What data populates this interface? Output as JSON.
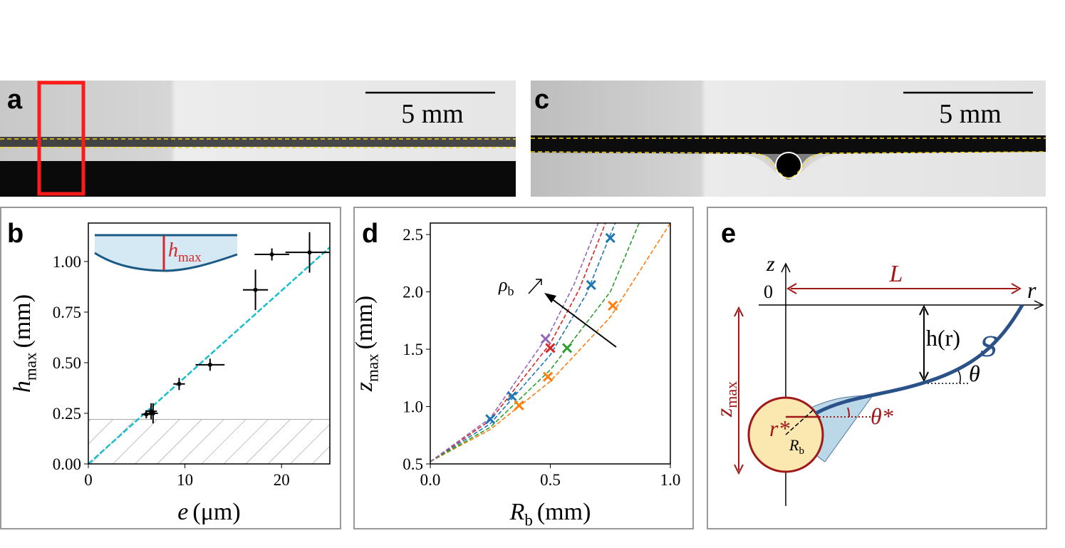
{
  "panels": {
    "a": {
      "label": "a",
      "scale_bar": "5 mm"
    },
    "c": {
      "label": "c",
      "scale_bar": "5 mm"
    },
    "b": {
      "label": "b"
    },
    "d": {
      "label": "d"
    },
    "e": {
      "label": "e",
      "labels": {
        "z": "z",
        "origin": "0",
        "r": "r",
        "L": "L",
        "h": "h(r)",
        "theta": "θ",
        "S": "S",
        "zmax_symbol": "z",
        "zmax_sub": "max",
        "rstar": "r*",
        "thetastar": "θ*",
        "Rb_symbol": "R",
        "Rb_sub": "b"
      }
    }
  },
  "chart_data": [
    {
      "type": "scatter",
      "xlabel": {
        "symbol": "e",
        "unit": "(μm)"
      },
      "ylabel": {
        "symbol": "h",
        "subscript": "max",
        "unit": "(mm)"
      },
      "inset_label": {
        "symbol": "h",
        "subscript": "max"
      },
      "xlim": [
        0,
        25
      ],
      "ylim": [
        0,
        1.19
      ],
      "xticks": [
        0,
        10,
        20
      ],
      "yticks": [
        {
          "value": 0,
          "label": "0.00"
        },
        {
          "value": 0.25,
          "label": "0.25"
        },
        {
          "value": 0.5,
          "label": "0.50"
        },
        {
          "value": 0.75,
          "label": "0.75"
        },
        {
          "value": 1,
          "label": "1.00"
        }
      ],
      "shaded_below": 0.22,
      "fit": {
        "x": [
          0,
          25
        ],
        "y": [
          0,
          1.07
        ],
        "color": "#17becf"
      },
      "points": {
        "color": "#000000",
        "x": [
          6.0,
          6.5,
          6.7,
          9.4,
          12.6,
          17.3,
          19.0,
          22.9
        ],
        "y": [
          0.245,
          0.26,
          0.25,
          0.395,
          0.49,
          0.86,
          1.035,
          1.045
        ],
        "xerr": [
          0.5,
          0.6,
          0.5,
          0.6,
          1.5,
          1.3,
          1.8,
          2.5
        ],
        "yerr": [
          0.02,
          0.04,
          0.05,
          0.03,
          0.03,
          0.1,
          0.03,
          0.1
        ]
      }
    },
    {
      "type": "scatter",
      "xlabel": {
        "symbol": "R",
        "subscript": "b",
        "unit": "(mm)"
      },
      "ylabel": {
        "symbol": "z",
        "subscript": "max",
        "unit": "(mm)"
      },
      "annotation": {
        "symbol": "ρ",
        "subscript": "b"
      },
      "xlim": [
        0,
        1
      ],
      "ylim": [
        0.5,
        2.6
      ],
      "xticks": [
        {
          "value": 0,
          "label": "0.0"
        },
        {
          "value": 0.5,
          "label": "0.5"
        },
        {
          "value": 1,
          "label": "1.0"
        }
      ],
      "yticks": [
        {
          "value": 0.5,
          "label": "0.5"
        },
        {
          "value": 1,
          "label": "1.0"
        },
        {
          "value": 1.5,
          "label": "1.5"
        },
        {
          "value": 2,
          "label": "2.0"
        },
        {
          "value": 2.5,
          "label": "2.5"
        }
      ],
      "series": [
        {
          "color": "#1f77b4",
          "x": [
            0.25,
            0.34,
            0.67,
            0.75
          ],
          "y": [
            0.89,
            1.09,
            2.06,
            2.47
          ],
          "curve_x": [
            0,
            0.25,
            0.5,
            0.65,
            0.77
          ],
          "curve_y": [
            0.52,
            0.85,
            1.45,
            1.98,
            2.6
          ]
        },
        {
          "color": "#ff7f0e",
          "x": [
            0.37,
            0.49,
            0.76
          ],
          "y": [
            1.01,
            1.26,
            1.88
          ],
          "curve_x": [
            0,
            0.25,
            0.5,
            0.75,
            1.0
          ],
          "curve_y": [
            0.52,
            0.8,
            1.22,
            1.78,
            2.6
          ]
        },
        {
          "color": "#2ca02c",
          "x": [
            0.57
          ],
          "y": [
            1.51
          ],
          "curve_x": [
            0,
            0.25,
            0.5,
            0.75,
            0.87
          ],
          "curve_y": [
            0.52,
            0.82,
            1.32,
            2.0,
            2.6
          ]
        },
        {
          "color": "#d62728",
          "x": [
            0.5
          ],
          "y": [
            1.51
          ],
          "curve_x": [
            0,
            0.25,
            0.5,
            0.62,
            0.73
          ],
          "curve_y": [
            0.52,
            0.88,
            1.55,
            2.02,
            2.6
          ]
        },
        {
          "color": "#9467bd",
          "x": [
            0.48
          ],
          "y": [
            1.59
          ],
          "curve_x": [
            0,
            0.25,
            0.5,
            0.6,
            0.7
          ],
          "curve_y": [
            0.52,
            0.9,
            1.65,
            2.07,
            2.6
          ]
        }
      ]
    }
  ]
}
